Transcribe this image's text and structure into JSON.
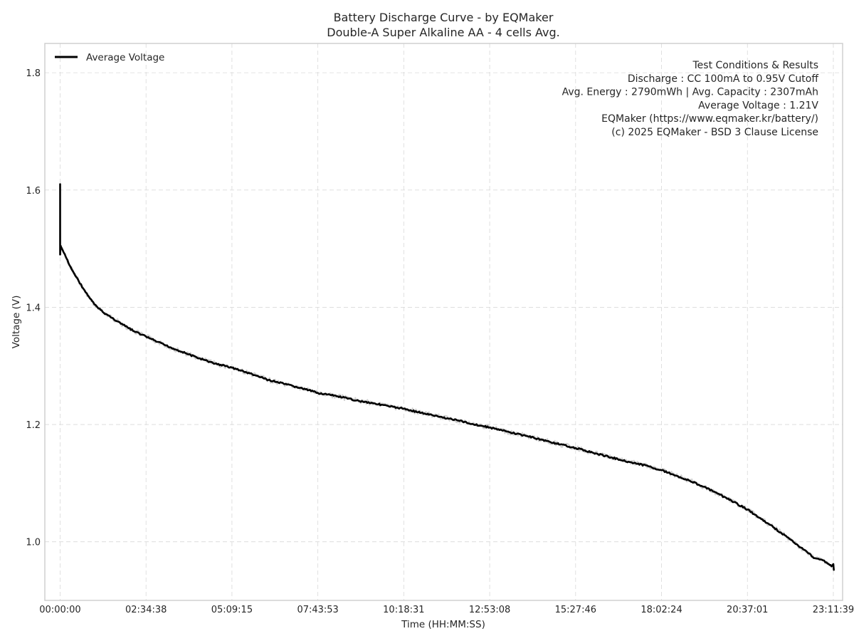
{
  "chart_data": {
    "type": "line",
    "title": "Battery Discharge Curve - by EQMaker",
    "subtitle": "Double-A Super Alkaline AA - 4 cells Avg.",
    "xlabel": "Time (HH:MM:SS)",
    "ylabel": "Voltage (V)",
    "x_unit": "seconds",
    "xlim": [
      -1650,
      84500
    ],
    "ylim": [
      0.9,
      1.85
    ],
    "grid": true,
    "legend": {
      "placement": "top-left",
      "entries": [
        "Average Voltage"
      ]
    },
    "x_ticks": [
      {
        "value": 0,
        "label": "00:00:00"
      },
      {
        "value": 9278,
        "label": "02:34:38"
      },
      {
        "value": 18555,
        "label": "05:09:15"
      },
      {
        "value": 27833,
        "label": "07:43:53"
      },
      {
        "value": 37111,
        "label": "10:18:31"
      },
      {
        "value": 46388,
        "label": "12:53:08"
      },
      {
        "value": 55666,
        "label": "15:27:46"
      },
      {
        "value": 64944,
        "label": "18:02:24"
      },
      {
        "value": 74221,
        "label": "20:37:01"
      },
      {
        "value": 83499,
        "label": "23:11:39"
      }
    ],
    "y_ticks": [
      {
        "value": 1.0,
        "label": "1.0"
      },
      {
        "value": 1.2,
        "label": "1.2"
      },
      {
        "value": 1.4,
        "label": "1.4"
      },
      {
        "value": 1.6,
        "label": "1.6"
      },
      {
        "value": 1.8,
        "label": "1.8"
      }
    ],
    "annotation": {
      "placement": "top-right",
      "lines": [
        "Test Conditions & Results",
        "Discharge : CC 100mA to 0.95V Cutoff",
        "Avg. Energy : 2790mWh | Avg. Capacity : 2307mAh",
        "Average Voltage : 1.21V",
        "EQMaker (https://www.eqmaker.kr/battery/)",
        "(c) 2025 EQMaker - BSD 3 Clause License"
      ]
    },
    "series": [
      {
        "name": "Average Voltage",
        "color": "#000000",
        "x": [
          0,
          2,
          5,
          10,
          20,
          40,
          60,
          100,
          200,
          400,
          700,
          1000,
          1500,
          2000,
          2500,
          3000,
          3700,
          4600,
          5600,
          6800,
          8000,
          9278,
          10500,
          12000,
          13500,
          15000,
          16500,
          18555,
          20500,
          22500,
          24500,
          26500,
          27833,
          30000,
          32000,
          34000,
          35500,
          37111,
          39000,
          41000,
          43000,
          44500,
          46388,
          48500,
          50500,
          52500,
          54000,
          55666,
          57500,
          59500,
          61500,
          63500,
          64944,
          66500,
          68000,
          69500,
          71000,
          72500,
          74221,
          75500,
          77000,
          78500,
          80000,
          81500,
          82500,
          83000,
          83300,
          83499,
          83550
        ],
        "values": [
          1.49,
          1.61,
          1.5,
          1.49,
          1.495,
          1.5,
          1.505,
          1.503,
          1.5,
          1.493,
          1.483,
          1.472,
          1.458,
          1.445,
          1.432,
          1.42,
          1.405,
          1.392,
          1.382,
          1.37,
          1.359,
          1.35,
          1.341,
          1.331,
          1.322,
          1.313,
          1.305,
          1.297,
          1.287,
          1.276,
          1.268,
          1.26,
          1.254,
          1.248,
          1.241,
          1.236,
          1.231,
          1.227,
          1.22,
          1.213,
          1.207,
          1.201,
          1.195,
          1.187,
          1.18,
          1.172,
          1.166,
          1.16,
          1.152,
          1.144,
          1.136,
          1.129,
          1.122,
          1.113,
          1.104,
          1.094,
          1.082,
          1.07,
          1.055,
          1.041,
          1.025,
          1.008,
          0.99,
          0.972,
          0.968,
          0.962,
          0.958,
          0.962,
          0.952
        ]
      }
    ]
  }
}
